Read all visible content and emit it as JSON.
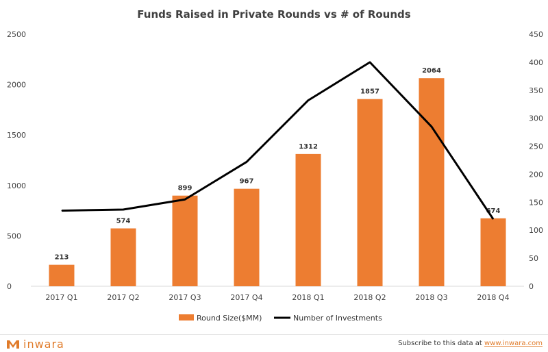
{
  "chart_data": {
    "type": "bar",
    "title": "Funds Raised in Private Rounds vs # of Rounds",
    "categories": [
      "2017 Q1",
      "2017 Q2",
      "2017 Q3",
      "2017 Q4",
      "2018 Q1",
      "2018 Q2",
      "2018 Q3",
      "2018 Q4"
    ],
    "series": [
      {
        "name": "Round Size($MM)",
        "type": "bar",
        "axis": "left",
        "values": [
          213,
          574,
          899,
          967,
          1312,
          1857,
          2064,
          674
        ],
        "color": "#ed7d31"
      },
      {
        "name": "Number of Investments",
        "type": "line",
        "axis": "right",
        "values": [
          135,
          137,
          155,
          222,
          332,
          400,
          285,
          120
        ],
        "color": "#000000"
      }
    ],
    "ylim_left": [
      0,
      2500
    ],
    "yticks_left": [
      0,
      500,
      1000,
      1500,
      2000,
      2500
    ],
    "ylim_right": [
      0,
      450
    ],
    "yticks_right": [
      0,
      50,
      100,
      150,
      200,
      250,
      300,
      350,
      400,
      450
    ],
    "legend_position": "bottom",
    "grid": false
  },
  "footer": {
    "logo_text": "inwara",
    "subscribe_text": "Subscribe to this data at",
    "subscribe_link": "www.inwara.com"
  },
  "colors": {
    "accent": "#e07b2a"
  }
}
